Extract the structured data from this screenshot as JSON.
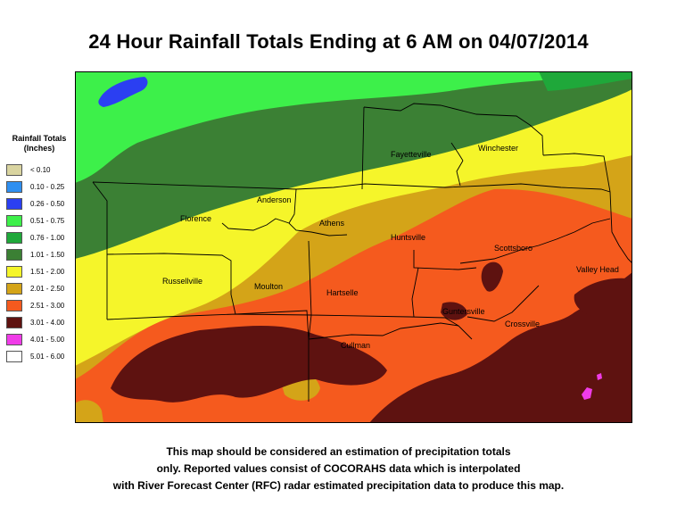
{
  "title": "24 Hour Rainfall Totals Ending at 6 AM on 04/07/2014",
  "legend": {
    "title_line1": "Rainfall Totals",
    "title_line2": "(Inches)",
    "items": [
      {
        "label": "< 0.10",
        "color": "#d9d4a0"
      },
      {
        "label": "0.10 - 0.25",
        "color": "#2f8ff0"
      },
      {
        "label": "0.26 - 0.50",
        "color": "#2b3ff2"
      },
      {
        "label": "0.51 - 0.75",
        "color": "#3df04a"
      },
      {
        "label": "0.76 - 1.00",
        "color": "#1fa83a"
      },
      {
        "label": "1.01 - 1.50",
        "color": "#3b8034"
      },
      {
        "label": "1.51 - 2.00",
        "color": "#f5f52a"
      },
      {
        "label": "2.01 - 2.50",
        "color": "#d4a418"
      },
      {
        "label": "2.51 - 3.00",
        "color": "#f55a1e"
      },
      {
        "label": "3.01 - 4.00",
        "color": "#5e1210"
      },
      {
        "label": "4.01 - 5.00",
        "color": "#f03ce8"
      },
      {
        "label": "5.01 - 6.00",
        "color": "#ffffff"
      }
    ]
  },
  "cities": {
    "fayetteville": "Fayetteville",
    "winchester": "Winchester",
    "anderson": "Anderson",
    "florence": "Florence",
    "athens": "Athens",
    "huntsville": "Huntsville",
    "scottsboro": "Scottsboro",
    "russellville": "Russellville",
    "moulton": "Moulton",
    "hartselle": "Hartselle",
    "valleyhead": "Valley Head",
    "guntersville": "Guntersville",
    "crossville": "Crossville",
    "cullman": "Cullman"
  },
  "footer": {
    "line1": "This map should be considered an estimation of precipitation totals",
    "line2": "only.  Reported values consist of COCORAHS data which is  interpolated",
    "line3": "with River Forecast Center (RFC) radar estimated precipitation data to produce this map."
  }
}
